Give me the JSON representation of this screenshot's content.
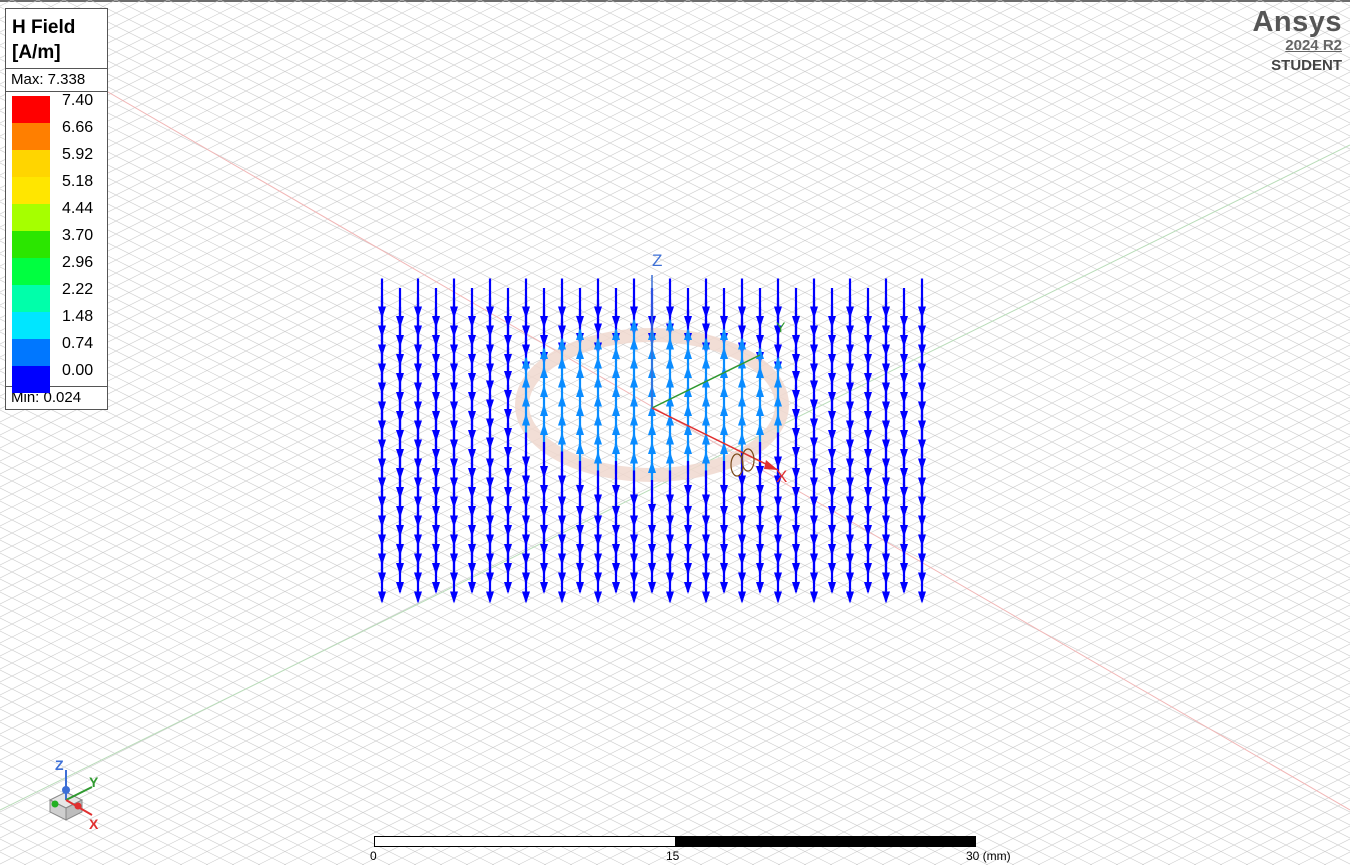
{
  "legend": {
    "title_line1": "H Field",
    "title_line2": "[A/m]",
    "max_text": "Max: 7.338",
    "min_text": "Min: 0.024",
    "levels": [
      {
        "label": "7.40",
        "color": "#ff0000"
      },
      {
        "label": "6.66",
        "color": "#ff7f00"
      },
      {
        "label": "5.92",
        "color": "#ffd500"
      },
      {
        "label": "5.18",
        "color": "#ffe600"
      },
      {
        "label": "4.44",
        "color": "#a6ff00"
      },
      {
        "label": "3.70",
        "color": "#2be600"
      },
      {
        "label": "2.96",
        "color": "#00ff40"
      },
      {
        "label": "2.22",
        "color": "#00ffaa"
      },
      {
        "label": "1.48",
        "color": "#00e6ff"
      },
      {
        "label": "0.74",
        "color": "#0077ff"
      },
      {
        "label": "0.00",
        "color": "#0000ff"
      }
    ]
  },
  "brand": {
    "name": "Ansys",
    "version": "2024 R2",
    "edition": "STUDENT"
  },
  "axes": {
    "x_label": "X",
    "y_label": "Y",
    "z_label": "Z"
  },
  "scale_bar": {
    "label_start": "0",
    "label_mid": "15",
    "label_end": "30 (mm)"
  },
  "colors": {
    "vector_low": "#0000ff",
    "vector_mid": "#0a8cff",
    "ring": "#f3dcd3",
    "grid": "#d0d0d0",
    "x_axis": "#e03030",
    "y_axis": "#2f9a2f",
    "z_axis": "#3d6fd6"
  }
}
